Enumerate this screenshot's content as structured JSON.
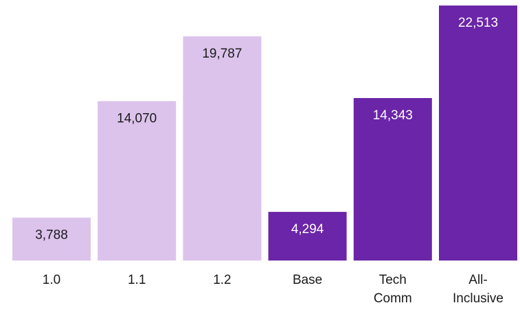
{
  "chart_data": {
    "type": "bar",
    "categories": [
      [
        "1.0"
      ],
      [
        "1.1"
      ],
      [
        "1.2"
      ],
      [
        "Base"
      ],
      [
        "Tech",
        "Comm"
      ],
      [
        "All-",
        "Inclusive"
      ]
    ],
    "values": [
      3788,
      14070,
      19787,
      4294,
      14343,
      22513
    ],
    "value_labels": [
      "3,788",
      "14,070",
      "19,787",
      "4,294",
      "14,343",
      "22,513"
    ],
    "bar_colors": [
      "#dcc3ec",
      "#dcc3ec",
      "#dcc3ec",
      "#6b25a8",
      "#6b25a8",
      "#6b25a8"
    ],
    "label_colors": [
      "#1a1a1a",
      "#1a1a1a",
      "#1a1a1a",
      "#ffffff",
      "#ffffff",
      "#ffffff"
    ],
    "ylim": [
      0,
      23000
    ],
    "grid": false,
    "title": "",
    "xlabel": "",
    "ylabel": ""
  }
}
